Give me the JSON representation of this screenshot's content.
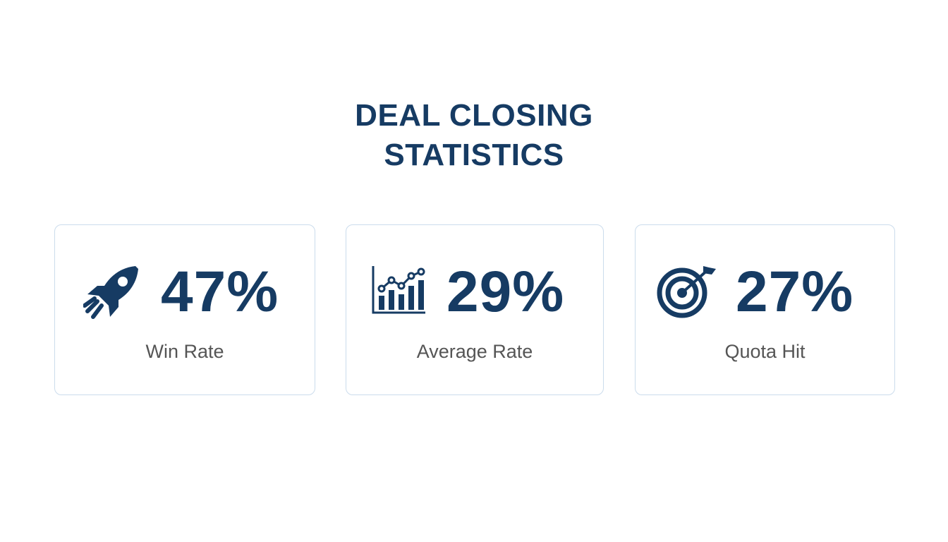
{
  "header": {
    "title": "DEAL CLOSING STATISTICS"
  },
  "cards": [
    {
      "value": "47%",
      "label": "Win Rate"
    },
    {
      "value": "29%",
      "label": "Average Rate"
    },
    {
      "value": "27%",
      "label": "Quota Hit"
    }
  ]
}
